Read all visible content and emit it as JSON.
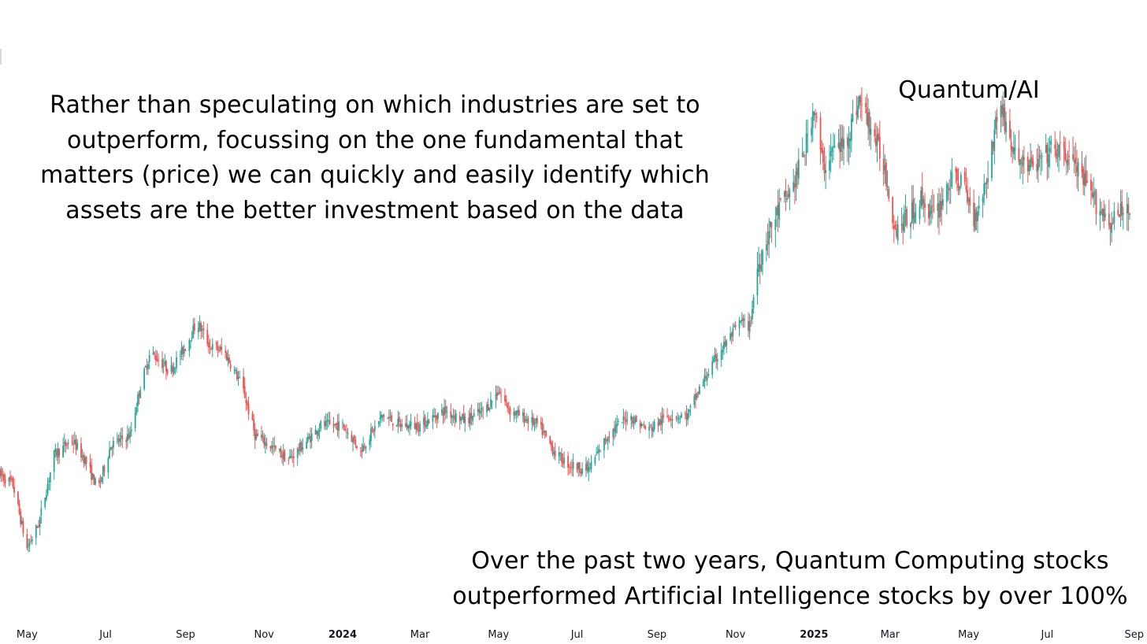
{
  "annotation_left": [
    "Rather than speculating on which industries are set to",
    "outperform, focussing on the one fundamental that",
    "matters (price) we can quickly and easily identify which",
    "assets are the better investment based on the data"
  ],
  "annotation_bottom": [
    "Over the past two years, Quantum Computing stocks",
    "outperformed Artificial Intelligence stocks by over 100%"
  ],
  "colors": {
    "up": "#26a69a",
    "down": "#ef5350",
    "text": "#131722",
    "background": "#ffffff"
  },
  "chart_data": {
    "type": "candlestick",
    "series": [
      {
        "name": "Quantum/AI"
      }
    ],
    "x_axis": {
      "ticks": [
        {
          "label": "May",
          "date": "2023-05-01"
        },
        {
          "label": "Jul",
          "date": "2023-07-01"
        },
        {
          "label": "Sep",
          "date": "2023-09-01"
        },
        {
          "label": "Nov",
          "date": "2023-11-01"
        },
        {
          "label": "2024",
          "date": "2024-01-01",
          "bold": true
        },
        {
          "label": "Mar",
          "date": "2024-03-01"
        },
        {
          "label": "May",
          "date": "2024-05-01"
        },
        {
          "label": "Jul",
          "date": "2024-07-01"
        },
        {
          "label": "Sep",
          "date": "2024-09-01"
        },
        {
          "label": "Nov",
          "date": "2024-11-01"
        },
        {
          "label": "2025",
          "date": "2025-01-01",
          "bold": true
        },
        {
          "label": "Mar",
          "date": "2025-03-01"
        },
        {
          "label": "May",
          "date": "2025-05-01"
        },
        {
          "label": "Jul",
          "date": "2025-07-01"
        },
        {
          "label": "Sep",
          "date": "2025-09-01"
        }
      ],
      "range": [
        "2023-04-10",
        "2025-09-03"
      ]
    },
    "y_axis": {
      "visible": false,
      "range": [
        0.0,
        1.0
      ]
    },
    "grid": false,
    "price_path": [
      [
        "2023-04-10",
        0.2
      ],
      [
        "2023-04-20",
        0.18
      ],
      [
        "2023-05-01",
        0.05
      ],
      [
        "2023-05-10",
        0.1
      ],
      [
        "2023-05-22",
        0.24
      ],
      [
        "2023-06-05",
        0.27
      ],
      [
        "2023-06-15",
        0.23
      ],
      [
        "2023-06-25",
        0.17
      ],
      [
        "2023-07-05",
        0.26
      ],
      [
        "2023-07-20",
        0.28
      ],
      [
        "2023-07-28",
        0.38
      ],
      [
        "2023-08-05",
        0.45
      ],
      [
        "2023-08-12",
        0.43
      ],
      [
        "2023-08-20",
        0.41
      ],
      [
        "2023-09-01",
        0.46
      ],
      [
        "2023-09-10",
        0.51
      ],
      [
        "2023-09-20",
        0.46
      ],
      [
        "2023-10-01",
        0.45
      ],
      [
        "2023-10-15",
        0.38
      ],
      [
        "2023-10-25",
        0.28
      ],
      [
        "2023-11-05",
        0.26
      ],
      [
        "2023-11-20",
        0.23
      ],
      [
        "2023-12-05",
        0.27
      ],
      [
        "2023-12-15",
        0.3
      ],
      [
        "2024-01-01",
        0.3
      ],
      [
        "2024-01-15",
        0.25
      ],
      [
        "2024-02-01",
        0.32
      ],
      [
        "2024-02-15",
        0.3
      ],
      [
        "2024-03-01",
        0.3
      ],
      [
        "2024-03-20",
        0.33
      ],
      [
        "2024-04-05",
        0.31
      ],
      [
        "2024-04-20",
        0.33
      ],
      [
        "2024-05-01",
        0.37
      ],
      [
        "2024-05-10",
        0.33
      ],
      [
        "2024-06-01",
        0.3
      ],
      [
        "2024-06-15",
        0.24
      ],
      [
        "2024-06-25",
        0.22
      ],
      [
        "2024-07-10",
        0.21
      ],
      [
        "2024-07-25",
        0.28
      ],
      [
        "2024-08-10",
        0.32
      ],
      [
        "2024-08-25",
        0.29
      ],
      [
        "2024-09-10",
        0.32
      ],
      [
        "2024-09-25",
        0.32
      ],
      [
        "2024-10-05",
        0.38
      ],
      [
        "2024-10-20",
        0.45
      ],
      [
        "2024-11-05",
        0.51
      ],
      [
        "2024-11-12",
        0.5
      ],
      [
        "2024-11-18",
        0.62
      ],
      [
        "2024-11-25",
        0.68
      ],
      [
        "2024-12-05",
        0.74
      ],
      [
        "2024-12-15",
        0.78
      ],
      [
        "2024-12-25",
        0.86
      ],
      [
        "2025-01-01",
        0.95
      ],
      [
        "2025-01-08",
        0.82
      ],
      [
        "2025-01-15",
        0.86
      ],
      [
        "2025-01-25",
        0.87
      ],
      [
        "2025-02-05",
        0.96
      ],
      [
        "2025-02-15",
        0.9
      ],
      [
        "2025-02-25",
        0.82
      ],
      [
        "2025-03-05",
        0.7
      ],
      [
        "2025-03-15",
        0.72
      ],
      [
        "2025-03-25",
        0.76
      ],
      [
        "2025-04-05",
        0.72
      ],
      [
        "2025-04-15",
        0.79
      ],
      [
        "2025-04-25",
        0.8
      ],
      [
        "2025-05-05",
        0.72
      ],
      [
        "2025-05-15",
        0.8
      ],
      [
        "2025-05-25",
        0.96
      ],
      [
        "2025-06-05",
        0.85
      ],
      [
        "2025-06-20",
        0.82
      ],
      [
        "2025-07-05",
        0.86
      ],
      [
        "2025-07-20",
        0.84
      ],
      [
        "2025-08-05",
        0.76
      ],
      [
        "2025-08-20",
        0.71
      ],
      [
        "2025-09-03",
        0.75
      ]
    ]
  }
}
